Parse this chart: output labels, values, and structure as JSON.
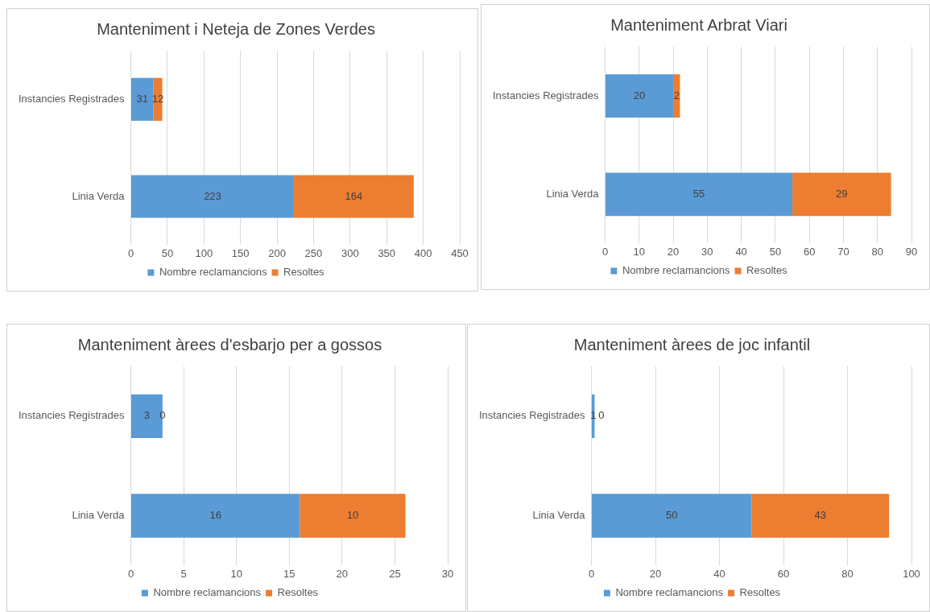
{
  "chart_data": [
    {
      "type": "bar",
      "orientation": "horizontal",
      "stacked": true,
      "title": "Manteniment i Neteja de Zones Verdes",
      "categories": [
        "Instancies Registrades",
        "Linia Verda"
      ],
      "series": [
        {
          "name": "Nombre reclamancions",
          "color": "#5b9bd5",
          "values": [
            31,
            223
          ]
        },
        {
          "name": "Resoltes",
          "color": "#ed7d31",
          "values": [
            12,
            164
          ]
        }
      ],
      "xlim": [
        0,
        450
      ],
      "xticks": [
        0,
        50,
        100,
        150,
        200,
        250,
        300,
        350,
        400,
        450
      ],
      "grid": "x",
      "legend": "bottom",
      "data_labels": true
    },
    {
      "type": "bar",
      "orientation": "horizontal",
      "stacked": true,
      "title": "Manteniment Arbrat Viari",
      "categories": [
        "Instancies Registrades",
        "Linia Verda"
      ],
      "series": [
        {
          "name": "Nombre reclamancions",
          "color": "#5b9bd5",
          "values": [
            20,
            55
          ]
        },
        {
          "name": "Resoltes",
          "color": "#ed7d31",
          "values": [
            2,
            29
          ]
        }
      ],
      "xlim": [
        0,
        90
      ],
      "xticks": [
        0,
        10,
        20,
        30,
        40,
        50,
        60,
        70,
        80,
        90
      ],
      "grid": "x",
      "legend": "bottom",
      "data_labels": true
    },
    {
      "type": "bar",
      "orientation": "horizontal",
      "stacked": true,
      "title": "Manteniment àrees d'esbarjo per a gossos",
      "categories": [
        "Instancies Registrades",
        "Linia Verda"
      ],
      "series": [
        {
          "name": "Nombre reclamancions",
          "color": "#5b9bd5",
          "values": [
            3,
            16
          ]
        },
        {
          "name": "Resoltes",
          "color": "#ed7d31",
          "values": [
            0,
            10
          ]
        }
      ],
      "xlim": [
        0,
        30
      ],
      "xticks": [
        0,
        5,
        10,
        15,
        20,
        25,
        30
      ],
      "grid": "x",
      "legend": "bottom",
      "data_labels": true
    },
    {
      "type": "bar",
      "orientation": "horizontal",
      "stacked": true,
      "title": "Manteniment àrees de joc infantil",
      "categories": [
        "Instancies Registrades",
        "Linia Verda"
      ],
      "series": [
        {
          "name": "Nombre reclamancions",
          "color": "#5b9bd5",
          "values": [
            1,
            50
          ]
        },
        {
          "name": "Resoltes",
          "color": "#ed7d31",
          "values": [
            0,
            43
          ]
        }
      ],
      "xlim": [
        0,
        100
      ],
      "xticks": [
        0,
        20,
        40,
        60,
        80,
        100
      ],
      "grid": "x",
      "legend": "bottom",
      "data_labels": true
    }
  ]
}
